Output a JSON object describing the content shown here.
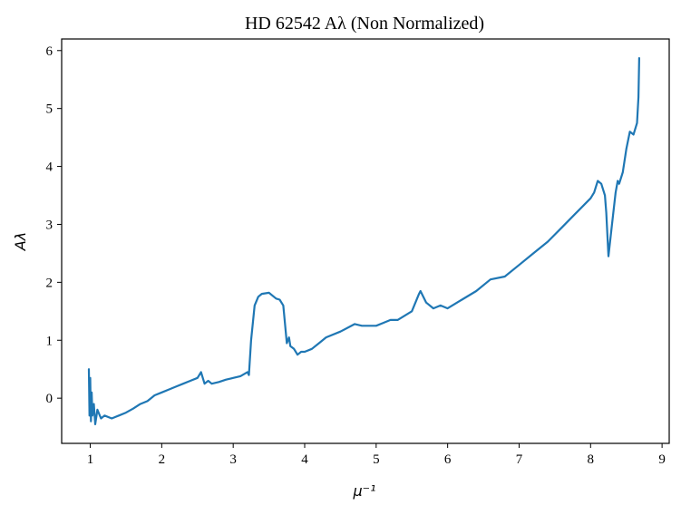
{
  "chart_data": {
    "type": "line",
    "title": "HD 62542 Aλ (Non Normalized)",
    "xlabel": "μ⁻¹",
    "ylabel": "Aλ",
    "xlim": [
      0.6,
      9.1
    ],
    "ylim": [
      -0.78,
      6.2
    ],
    "xticks": [
      "1",
      "2",
      "3",
      "4",
      "5",
      "6",
      "7",
      "8",
      "9"
    ],
    "yticks": [
      "0",
      "1",
      "2",
      "3",
      "4",
      "5",
      "6"
    ],
    "grid": false,
    "series": [
      {
        "color": "#1f77b4",
        "x": [
          0.98,
          0.99,
          1.0,
          1.01,
          1.02,
          1.03,
          1.05,
          1.07,
          1.1,
          1.15,
          1.2,
          1.3,
          1.4,
          1.5,
          1.6,
          1.7,
          1.8,
          1.9,
          2.0,
          2.1,
          2.2,
          2.3,
          2.4,
          2.5,
          2.55,
          2.6,
          2.65,
          2.7,
          2.8,
          2.9,
          3.0,
          3.1,
          3.2,
          3.22,
          3.25,
          3.3,
          3.35,
          3.4,
          3.5,
          3.6,
          3.65,
          3.7,
          3.75,
          3.78,
          3.8,
          3.85,
          3.9,
          3.95,
          4.0,
          4.1,
          4.2,
          4.3,
          4.5,
          4.7,
          4.8,
          5.0,
          5.1,
          5.2,
          5.3,
          5.5,
          5.6,
          5.62,
          5.7,
          5.8,
          5.9,
          6.0,
          6.2,
          6.4,
          6.6,
          6.8,
          7.0,
          7.2,
          7.4,
          7.6,
          7.8,
          8.0,
          8.05,
          8.1,
          8.15,
          8.2,
          8.22,
          8.25,
          8.3,
          8.35,
          8.38,
          8.4,
          8.45,
          8.5,
          8.55,
          8.6,
          8.65,
          8.67,
          8.68
        ],
        "y": [
          0.5,
          -0.3,
          0.35,
          -0.4,
          0.1,
          -0.3,
          -0.1,
          -0.45,
          -0.2,
          -0.35,
          -0.3,
          -0.35,
          -0.3,
          -0.25,
          -0.18,
          -0.1,
          -0.05,
          0.05,
          0.1,
          0.15,
          0.2,
          0.25,
          0.3,
          0.35,
          0.45,
          0.25,
          0.3,
          0.25,
          0.28,
          0.32,
          0.35,
          0.38,
          0.45,
          0.4,
          1.0,
          1.6,
          1.75,
          1.8,
          1.82,
          1.72,
          1.7,
          1.6,
          0.95,
          1.05,
          0.9,
          0.85,
          0.75,
          0.8,
          0.8,
          0.85,
          0.95,
          1.05,
          1.15,
          1.28,
          1.25,
          1.25,
          1.3,
          1.35,
          1.35,
          1.5,
          1.8,
          1.85,
          1.65,
          1.55,
          1.6,
          1.55,
          1.7,
          1.85,
          2.05,
          2.1,
          2.3,
          2.5,
          2.7,
          2.95,
          3.2,
          3.45,
          3.55,
          3.75,
          3.7,
          3.5,
          3.2,
          2.45,
          3.0,
          3.55,
          3.75,
          3.7,
          3.9,
          4.3,
          4.6,
          4.55,
          4.75,
          5.2,
          5.87
        ]
      }
    ]
  }
}
